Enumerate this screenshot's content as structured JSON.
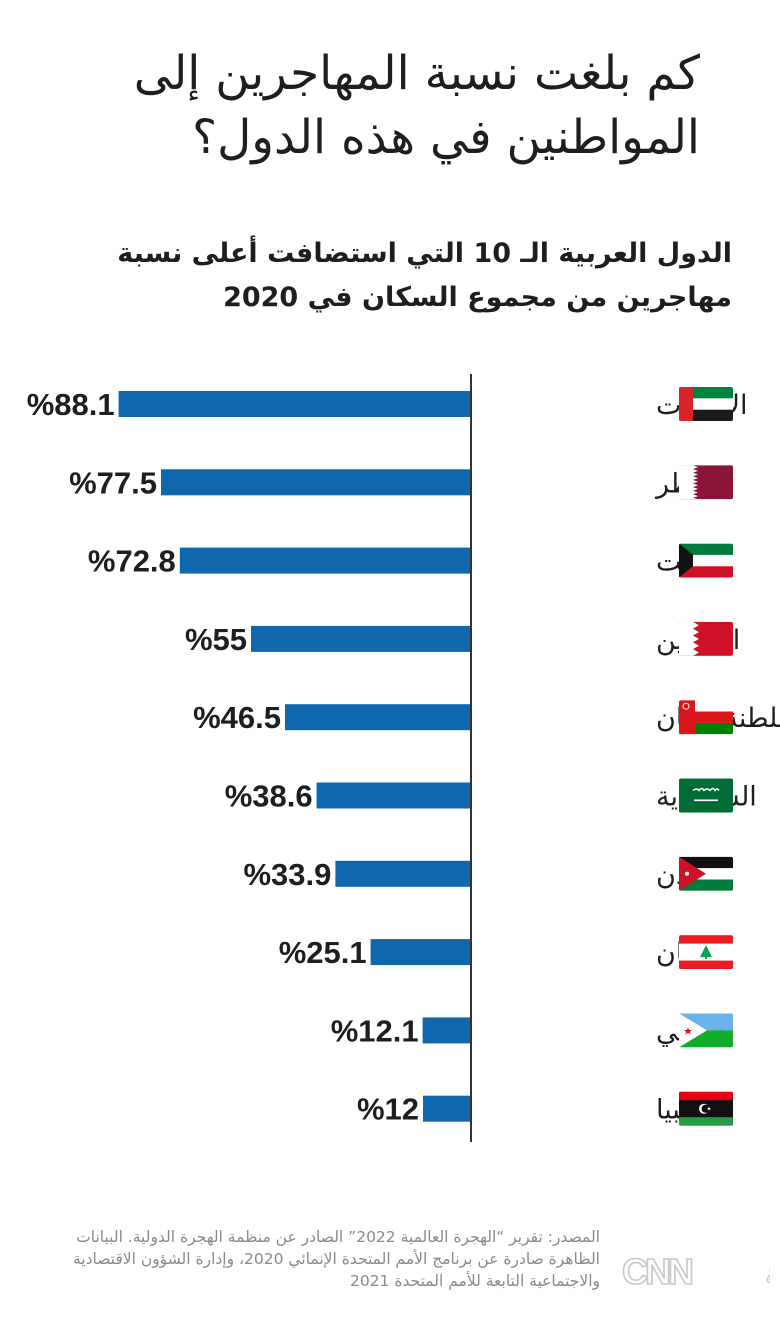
{
  "title": "كم بلغت نسبة المهاجرين إلى المواطنين في هذه الدول؟",
  "subtitle": "الدول العربية الـ 10 التي استضافت أعلى نسبة مهاجرين من مجموع السكان في 2020",
  "source": "المصدر: تقرير “الهجرة العالمية 2022” الصادر عن منظمة الهجرة الدولية. البيانات الظاهرة صادرة عن برنامج الأمم المتحدة الإنمائي 2020، وإدارة الشؤون الاقتصادية والاجتماعية التابعة للأمم المتحدة 2021",
  "logo": {
    "text": "CNN بالعربية",
    "icon": "cnn-arabic-logo"
  },
  "colors": {
    "bar": "#0f68ad",
    "axis": "#333333",
    "text": "#1e1e1e",
    "source": "#8a8a8a"
  },
  "chart_data": {
    "type": "bar",
    "orientation": "horizontal",
    "categories": [
      "الإمارات",
      "قطر",
      "الكويت",
      "البحرين",
      "سلطنة عُمان",
      "السعودية",
      "الأردن",
      "لبنان",
      "جيبوتي",
      "ليبيا"
    ],
    "values": [
      88.1,
      77.5,
      72.8,
      55,
      46.5,
      38.6,
      33.9,
      25.1,
      12.1,
      12
    ],
    "value_labels": [
      "%88.1",
      "%77.5",
      "%72.8",
      "%55",
      "%46.5",
      "%38.6",
      "%33.9",
      "%25.1",
      "%12.1",
      "%12"
    ],
    "flags": [
      "uae-flag-icon",
      "qatar-flag-icon",
      "kuwait-flag-icon",
      "bahrain-flag-icon",
      "oman-flag-icon",
      "saudi-flag-icon",
      "jordan-flag-icon",
      "lebanon-flag-icon",
      "djibouti-flag-icon",
      "libya-flag-icon"
    ],
    "xlim": [
      0,
      100
    ],
    "bar_direction": "right-to-left",
    "grid": false,
    "legend": "none"
  }
}
